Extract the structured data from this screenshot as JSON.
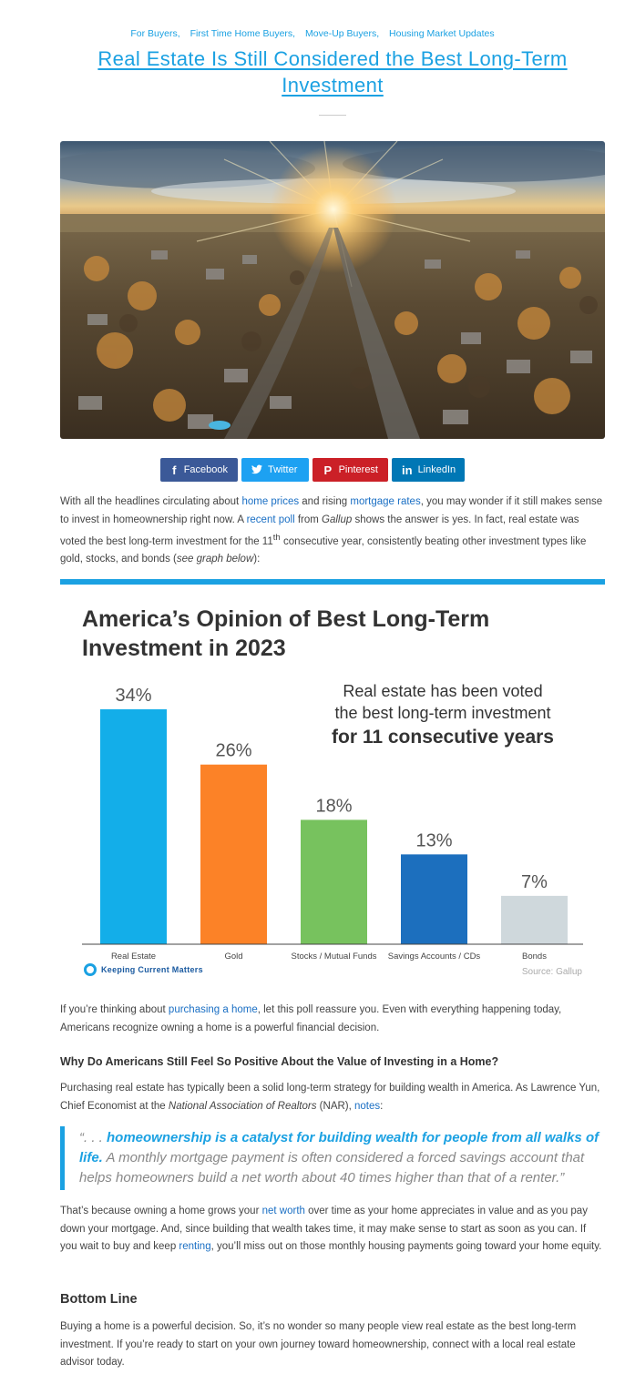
{
  "categories": [
    "For Buyers,",
    "First Time Home Buyers,",
    "Move-Up Buyers,",
    "Housing Market Updates"
  ],
  "title": "Real Estate Is Still Considered the Best Long-Term Investment",
  "share": {
    "facebook": "Facebook",
    "twitter": "Twitter",
    "pinterest": "Pinterest",
    "linkedin": "LinkedIn"
  },
  "intro": {
    "t1": "With all the headlines circulating about ",
    "l1": "home prices",
    "t2": " and rising ",
    "l2": "mortgage rates",
    "t3": ", you may wonder if it still makes sense to invest in homeownership right now. A ",
    "l3": "recent poll",
    "t4": " from ",
    "gallup": "Gallup",
    "t5": " shows the answer is yes. In fact, real estate was voted the best long-term investment for the 11",
    "sup": "th",
    "t6": " consecutive year, consistently beating other investment types like gold, stocks, and bonds (",
    "see": "see graph below",
    "t7": "):"
  },
  "chart_data": {
    "type": "bar",
    "title_line1": "America’s Opinion of Best Long-Term",
    "title_line2": "Investment in 2023",
    "callout_line1": "Real estate has been voted",
    "callout_line2": "the best long-term investment",
    "callout_bold": "for 11 consecutive years",
    "categories": [
      "Real Estate",
      "Gold",
      "Stocks / Mutual Funds",
      "Savings Accounts / CDs",
      "Bonds"
    ],
    "values": [
      34,
      26,
      18,
      13,
      7
    ],
    "labels": [
      "34%",
      "26%",
      "18%",
      "13%",
      "7%"
    ],
    "colors": [
      "#13aee9",
      "#fc8227",
      "#77c25e",
      "#1c6fbe",
      "#cfd8dc"
    ],
    "ylim": [
      0,
      34
    ],
    "source": "Source: Gallup",
    "brand": "Keeping Current Matters"
  },
  "para2": {
    "t1": "If you’re thinking about ",
    "l1": "purchasing a home",
    "t2": ", let this poll reassure you. Even with everything happening today, Americans recognize owning a home is a powerful financial decision."
  },
  "heading1": "Why Do Americans Still Feel So Positive About the Value of Investing in a Home?",
  "para3": {
    "t1": "Purchasing real estate has typically been a solid long-term strategy for building wealth in America. As Lawrence Yun, Chief Economist at the ",
    "nar": "National Association of Realtors",
    "t2": " (NAR), ",
    "l1": "notes",
    "t3": ":"
  },
  "quote": {
    "lead": "“. . . ",
    "hl": "homeownership is a catalyst for building wealth for people from all walks of life.",
    "rest": " A monthly mortgage payment is often considered a forced savings account that helps homeowners build a net worth about 40 times higher than that of a renter.”"
  },
  "para4": {
    "t1": "That’s because owning a home grows your ",
    "l1": "net worth",
    "t2": " over time as your home appreciates in value and as you pay down your mortgage. And, since building that wealth takes time, it may make sense to start as soon as you can. If you wait to buy and keep ",
    "l2": "renting",
    "t3": ", you’ll miss out on those monthly housing payments going toward your home equity."
  },
  "heading2": "Bottom Line",
  "para5": "Buying a home is a powerful decision. So, it’s no wonder so many people view real estate as the best long-term investment. If you’re ready to start on your own journey toward homeownership, connect with a local real estate advisor today."
}
